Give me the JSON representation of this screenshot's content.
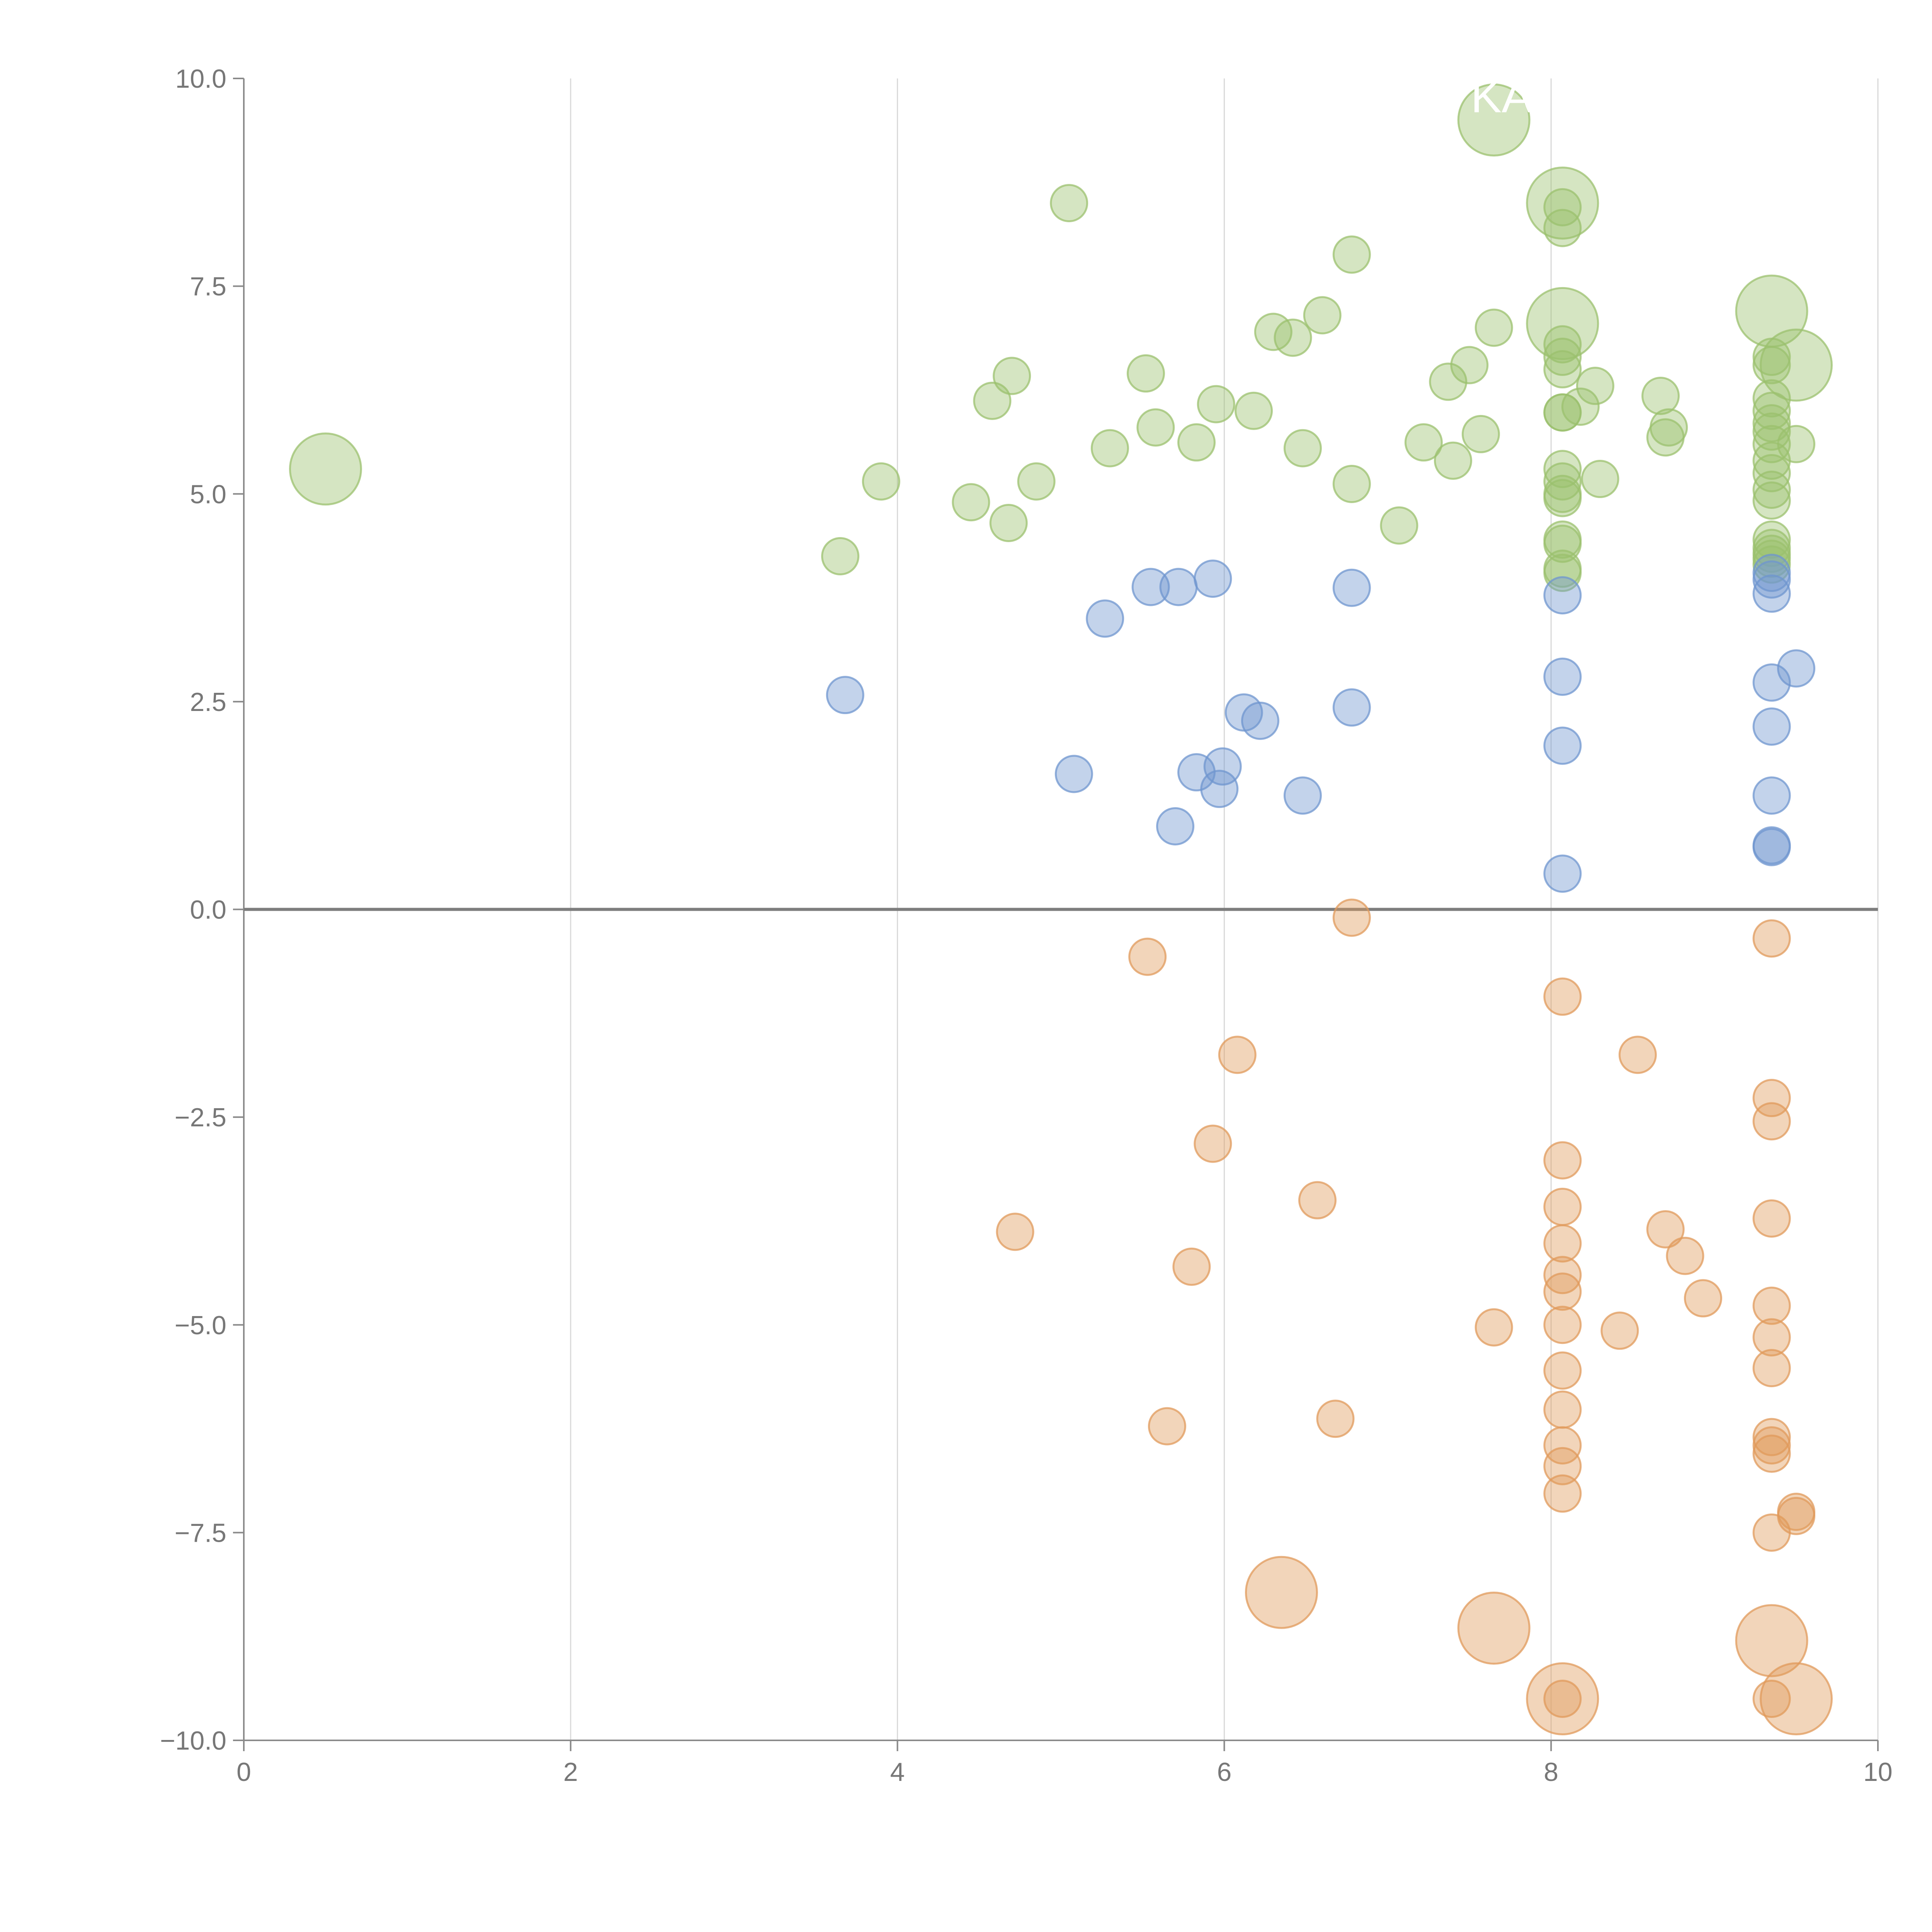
{
  "chart_data": {
    "type": "scatter",
    "variant": "bubble",
    "title": "",
    "xlabel": "",
    "ylabel": "",
    "xlim": [
      0,
      10
    ],
    "ylim": [
      -10,
      10
    ],
    "x_ticks": [
      0,
      2,
      4,
      6,
      8,
      10
    ],
    "y_ticks": [
      10,
      7.5,
      5,
      2.5,
      0,
      -2.5,
      -5,
      -7.5,
      -10
    ],
    "x_tick_labels": [
      "0",
      "2",
      "4",
      "6",
      "8",
      "10"
    ],
    "y_tick_labels": [
      "10.0",
      "7.5",
      "5.0",
      "2.5",
      "0.0",
      "−2.5",
      "−5.0",
      "−7.5",
      "−10.0"
    ],
    "grid": "vertical",
    "zero_line": true,
    "colors": {
      "green": "#9bc06e",
      "blue": "#6f95cf",
      "orange": "#e09a5b"
    },
    "annotations": [
      {
        "text": "KA",
        "x": 7.65,
        "y": 9.5
      }
    ],
    "series": [
      {
        "name": "green",
        "color": "#9bc06e",
        "points": [
          [
            0.5,
            5.3,
            2
          ],
          [
            3.65,
            4.25,
            1
          ],
          [
            3.9,
            5.15,
            1
          ],
          [
            4.45,
            4.9,
            1
          ],
          [
            4.58,
            6.12,
            1
          ],
          [
            4.68,
            4.65,
            1
          ],
          [
            4.7,
            6.42,
            1
          ],
          [
            4.85,
            5.15,
            1
          ],
          [
            5.05,
            8.5,
            1
          ],
          [
            5.3,
            5.55,
            1
          ],
          [
            5.52,
            6.45,
            1
          ],
          [
            5.58,
            5.8,
            1
          ],
          [
            5.83,
            5.62,
            1
          ],
          [
            5.95,
            6.08,
            1
          ],
          [
            6.18,
            6.0,
            1
          ],
          [
            6.3,
            6.95,
            1
          ],
          [
            6.42,
            6.88,
            1
          ],
          [
            6.48,
            5.55,
            1
          ],
          [
            6.6,
            7.15,
            1
          ],
          [
            6.78,
            7.88,
            1
          ],
          [
            6.78,
            5.12,
            1
          ],
          [
            7.07,
            4.62,
            1
          ],
          [
            7.22,
            5.62,
            1
          ],
          [
            7.37,
            6.35,
            1
          ],
          [
            7.4,
            5.4,
            1
          ],
          [
            7.5,
            6.55,
            1
          ],
          [
            7.57,
            5.72,
            1
          ],
          [
            7.65,
            7.0,
            1
          ],
          [
            7.65,
            9.5,
            2
          ],
          [
            8.07,
            8.5,
            2
          ],
          [
            8.07,
            8.45,
            1
          ],
          [
            8.07,
            8.2,
            1
          ],
          [
            8.07,
            7.05,
            2
          ],
          [
            8.07,
            6.8,
            1
          ],
          [
            8.07,
            6.65,
            1
          ],
          [
            8.07,
            6.5,
            1
          ],
          [
            8.07,
            5.98,
            1
          ],
          [
            8.07,
            5.98,
            1
          ],
          [
            8.07,
            5.3,
            1
          ],
          [
            8.07,
            5.15,
            1
          ],
          [
            8.07,
            4.95,
            1
          ],
          [
            8.07,
            5.0,
            1
          ],
          [
            8.07,
            4.45,
            1
          ],
          [
            8.07,
            4.4,
            1
          ],
          [
            8.07,
            4.1,
            1
          ],
          [
            8.07,
            4.05,
            1
          ],
          [
            8.18,
            6.05,
            1
          ],
          [
            8.27,
            6.3,
            1
          ],
          [
            8.3,
            5.18,
            1
          ],
          [
            8.67,
            6.18,
            1
          ],
          [
            8.7,
            5.68,
            1
          ],
          [
            8.72,
            5.8,
            1
          ],
          [
            9.35,
            7.2,
            2
          ],
          [
            9.35,
            6.65,
            1
          ],
          [
            9.35,
            6.55,
            1
          ],
          [
            9.35,
            6.15,
            1
          ],
          [
            9.35,
            6.0,
            1
          ],
          [
            9.35,
            5.85,
            1
          ],
          [
            9.35,
            5.75,
            1
          ],
          [
            9.35,
            5.6,
            1
          ],
          [
            9.35,
            5.4,
            1
          ],
          [
            9.35,
            5.25,
            1
          ],
          [
            9.35,
            5.05,
            1
          ],
          [
            9.35,
            4.92,
            1
          ],
          [
            9.35,
            4.45,
            1
          ],
          [
            9.35,
            4.35,
            1
          ],
          [
            9.35,
            4.28,
            1
          ],
          [
            9.35,
            4.22,
            1
          ],
          [
            9.35,
            4.15,
            1
          ],
          [
            9.5,
            6.55,
            2
          ],
          [
            9.5,
            5.6,
            1
          ]
        ]
      },
      {
        "name": "blue",
        "color": "#6f95cf",
        "points": [
          [
            3.68,
            2.58,
            1
          ],
          [
            5.08,
            1.63,
            1
          ],
          [
            5.27,
            3.5,
            1
          ],
          [
            5.55,
            3.88,
            1
          ],
          [
            5.7,
            1.0,
            1
          ],
          [
            5.72,
            3.88,
            1
          ],
          [
            5.83,
            1.65,
            1
          ],
          [
            5.93,
            3.98,
            1
          ],
          [
            5.97,
            1.45,
            1
          ],
          [
            5.99,
            1.72,
            1
          ],
          [
            6.12,
            2.37,
            1
          ],
          [
            6.22,
            2.27,
            1
          ],
          [
            6.48,
            1.37,
            1
          ],
          [
            6.78,
            3.87,
            1
          ],
          [
            6.78,
            2.43,
            1
          ],
          [
            8.07,
            3.78,
            1
          ],
          [
            8.07,
            2.8,
            1
          ],
          [
            8.07,
            1.97,
            1
          ],
          [
            8.07,
            0.43,
            1
          ],
          [
            9.35,
            4.05,
            1
          ],
          [
            9.35,
            3.97,
            1
          ],
          [
            9.35,
            3.8,
            1
          ],
          [
            9.35,
            2.73,
            1
          ],
          [
            9.35,
            2.2,
            1
          ],
          [
            9.35,
            1.37,
            1
          ],
          [
            9.35,
            0.77,
            1
          ],
          [
            9.35,
            0.75,
            1
          ],
          [
            9.5,
            2.9,
            1
          ]
        ]
      },
      {
        "name": "orange",
        "color": "#e09a5b",
        "points": [
          [
            4.72,
            -3.88,
            1
          ],
          [
            5.53,
            -0.57,
            1
          ],
          [
            5.65,
            -6.22,
            1
          ],
          [
            5.8,
            -4.3,
            1
          ],
          [
            5.93,
            -2.82,
            1
          ],
          [
            6.08,
            -1.75,
            1
          ],
          [
            6.35,
            -8.22,
            2
          ],
          [
            6.57,
            -3.5,
            1
          ],
          [
            6.68,
            -6.13,
            1
          ],
          [
            6.78,
            -0.1,
            1
          ],
          [
            7.65,
            -5.03,
            1
          ],
          [
            7.65,
            -8.65,
            2
          ],
          [
            8.07,
            -1.05,
            1
          ],
          [
            8.07,
            -3.02,
            1
          ],
          [
            8.07,
            -3.58,
            1
          ],
          [
            8.07,
            -4.02,
            1
          ],
          [
            8.07,
            -4.4,
            1
          ],
          [
            8.07,
            -4.6,
            1
          ],
          [
            8.07,
            -5.0,
            1
          ],
          [
            8.07,
            -5.55,
            1
          ],
          [
            8.07,
            -6.02,
            1
          ],
          [
            8.07,
            -6.45,
            1
          ],
          [
            8.07,
            -6.7,
            1
          ],
          [
            8.07,
            -7.03,
            1
          ],
          [
            8.07,
            -9.5,
            2
          ],
          [
            8.07,
            -9.5,
            1
          ],
          [
            8.42,
            -5.07,
            1
          ],
          [
            8.53,
            -1.75,
            1
          ],
          [
            8.7,
            -3.85,
            1
          ],
          [
            8.82,
            -4.17,
            1
          ],
          [
            8.93,
            -4.68,
            1
          ],
          [
            9.35,
            -0.35,
            1
          ],
          [
            9.35,
            -2.27,
            1
          ],
          [
            9.35,
            -2.55,
            1
          ],
          [
            9.35,
            -3.72,
            1
          ],
          [
            9.35,
            -4.77,
            1
          ],
          [
            9.35,
            -5.15,
            1
          ],
          [
            9.35,
            -5.52,
            1
          ],
          [
            9.35,
            -6.35,
            1
          ],
          [
            9.35,
            -6.45,
            1
          ],
          [
            9.35,
            -6.55,
            1
          ],
          [
            9.35,
            -7.5,
            1
          ],
          [
            9.35,
            -8.8,
            2
          ],
          [
            9.35,
            -9.5,
            1
          ],
          [
            9.5,
            -7.25,
            1
          ],
          [
            9.5,
            -7.3,
            1
          ],
          [
            9.5,
            -9.5,
            2
          ]
        ]
      }
    ]
  }
}
